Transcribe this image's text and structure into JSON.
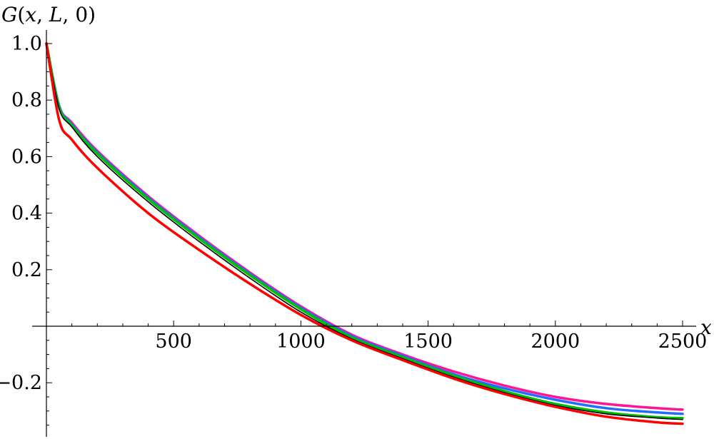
{
  "chart_data": {
    "type": "line",
    "title": "",
    "xlabel": "x",
    "ylabel_parts": [
      "G",
      "(",
      "x",
      ",  ",
      "L",
      ", ",
      "0",
      ")"
    ],
    "xlim": [
      0,
      2500
    ],
    "ylim": [
      -0.36,
      1.05
    ],
    "x_ticks": [
      500,
      1000,
      1500,
      2000,
      2500
    ],
    "x_tick_labels": [
      "500",
      "1000",
      "1500",
      "2000",
      "2500"
    ],
    "y_ticks": [
      -0.2,
      0.2,
      0.4,
      0.6,
      0.8,
      1.0
    ],
    "y_tick_labels": [
      "−0.2",
      "0.2",
      "0.4",
      "0.6",
      "0.8",
      "1.0"
    ],
    "grid": false,
    "legend": "none",
    "series": [
      {
        "color": "#ff1493",
        "x": [
          0,
          50,
          100,
          200,
          400,
          600,
          800,
          1000,
          1200,
          1400,
          1600,
          1800,
          2000,
          2200,
          2400,
          2500
        ],
        "y": [
          1.0,
          0.78,
          0.72,
          0.62,
          0.46,
          0.32,
          0.19,
          0.07,
          -0.03,
          -0.1,
          -0.16,
          -0.21,
          -0.25,
          -0.275,
          -0.29,
          -0.295
        ]
      },
      {
        "color": "#1e6fff",
        "x": [
          0,
          50,
          100,
          200,
          400,
          600,
          800,
          1000,
          1200,
          1400,
          1600,
          1800,
          2000,
          2200,
          2400,
          2500
        ],
        "y": [
          1.0,
          0.78,
          0.715,
          0.615,
          0.455,
          0.315,
          0.185,
          0.065,
          -0.035,
          -0.105,
          -0.17,
          -0.22,
          -0.26,
          -0.29,
          -0.305,
          -0.31
        ]
      },
      {
        "color": "#00c000",
        "x": [
          0,
          50,
          100,
          200,
          400,
          600,
          800,
          1000,
          1200,
          1400,
          1600,
          1800,
          2000,
          2200,
          2400,
          2500
        ],
        "y": [
          1.0,
          0.775,
          0.71,
          0.61,
          0.45,
          0.31,
          0.18,
          0.06,
          -0.04,
          -0.11,
          -0.175,
          -0.23,
          -0.275,
          -0.305,
          -0.322,
          -0.325
        ]
      },
      {
        "color": "#000000",
        "x": [
          0,
          50,
          100,
          200,
          400,
          600,
          800,
          1000,
          1200,
          1400,
          1600,
          1800,
          2000,
          2200,
          2400,
          2500
        ],
        "y": [
          1.0,
          0.77,
          0.705,
          0.6,
          0.44,
          0.3,
          0.17,
          0.05,
          -0.045,
          -0.115,
          -0.18,
          -0.235,
          -0.28,
          -0.31,
          -0.325,
          -0.33
        ]
      },
      {
        "color": "#ff0000",
        "x": [
          0,
          50,
          100,
          200,
          400,
          600,
          800,
          1000,
          1200,
          1400,
          1600,
          1800,
          2000,
          2200,
          2400,
          2500
        ],
        "y": [
          1.0,
          0.73,
          0.66,
          0.56,
          0.4,
          0.27,
          0.15,
          0.04,
          -0.05,
          -0.12,
          -0.185,
          -0.24,
          -0.285,
          -0.32,
          -0.34,
          -0.345
        ]
      }
    ]
  }
}
